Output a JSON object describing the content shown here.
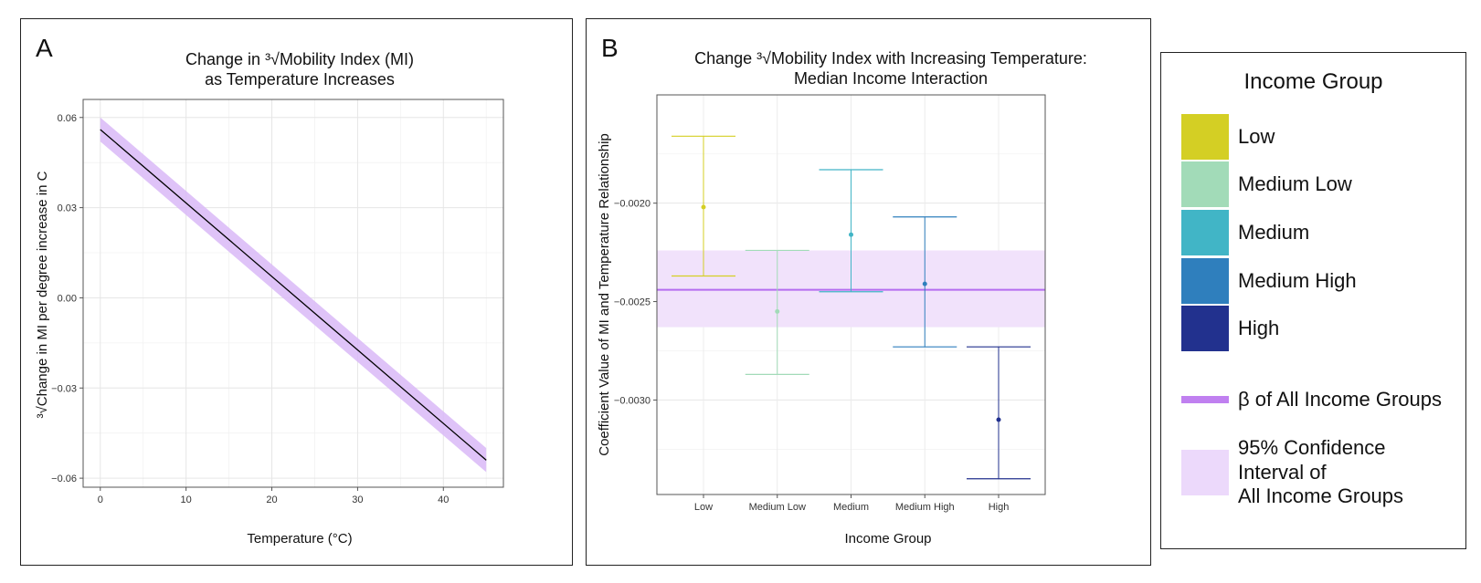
{
  "panel_a": {
    "letter": "A",
    "title_lines": [
      "Change in ³√Mobility Index (MI)",
      "as Temperature Increases"
    ],
    "ylabel": "³√Change in MI per degree increase in C"
  },
  "panel_b": {
    "letter": "B",
    "title_lines": [
      "Change ³√Mobility Index with Increasing Temperature:",
      "Median Income Interaction"
    ]
  },
  "legend": {
    "title": "Income Group",
    "items": [
      {
        "label": "Low",
        "color": "#d4cf24"
      },
      {
        "label": "Medium Low",
        "color": "#a2dbb8"
      },
      {
        "label": "Medium",
        "color": "#41b5c6"
      },
      {
        "label": "Medium High",
        "color": "#2f7fbd"
      },
      {
        "label": "High",
        "color": "#22318e"
      }
    ],
    "beta_label": "β of All Income Groups",
    "beta_color": "#c080f0",
    "ci_label": "95% Confidence\nInterval of\nAll Income Groups",
    "ci_color": "#ecd9fb"
  },
  "chart_data": [
    {
      "type": "line",
      "title": "Change in ³√Mobility Index (MI) as Temperature Increases",
      "xlabel": "Temperature (°C)",
      "ylabel": "³√Change in MI per degree increase in C",
      "xlim": [
        -2,
        47
      ],
      "ylim": [
        -0.063,
        0.066
      ],
      "xticks": [
        0,
        10,
        20,
        30,
        40
      ],
      "yticks": [
        -0.06,
        -0.03,
        0.0,
        0.03,
        0.06
      ],
      "ytick_labels": [
        "−0.06",
        "−0.03",
        "0.00",
        "0.03",
        "0.06"
      ],
      "grid": true,
      "series": [
        {
          "x": [
            0,
            45
          ],
          "y": [
            0.056,
            -0.054
          ],
          "ci_lower": [
            0.052,
            -0.058
          ],
          "ci_upper": [
            0.06,
            -0.05
          ],
          "color": "#000000",
          "band_color": "#d9b8f7"
        }
      ]
    },
    {
      "type": "scatter",
      "title": "Change ³√Mobility Index with Increasing Temperature: Median Income Interaction",
      "xlabel": "Income Group",
      "ylabel": "Coefficient Value of MI and Temperature Relationship",
      "categories": [
        "Low",
        "Medium Low",
        "Medium",
        "Medium High",
        "High"
      ],
      "ylim": [
        -0.00348,
        -0.00145
      ],
      "yticks": [
        -0.003,
        -0.0025,
        -0.002
      ],
      "ytick_labels": [
        "−0.0030",
        "−0.0025",
        "−0.0020"
      ],
      "grid": true,
      "points": [
        {
          "category": "Low",
          "value": -0.00202,
          "lower": -0.00237,
          "upper": -0.00166,
          "color": "#d4cf24"
        },
        {
          "category": "Medium Low",
          "value": -0.00255,
          "lower": -0.00287,
          "upper": -0.00224,
          "color": "#a2dbb8"
        },
        {
          "category": "Medium",
          "value": -0.00216,
          "lower": -0.00245,
          "upper": -0.00183,
          "color": "#41b5c6"
        },
        {
          "category": "Medium High",
          "value": -0.00241,
          "lower": -0.00273,
          "upper": -0.00207,
          "color": "#2f7fbd"
        },
        {
          "category": "High",
          "value": -0.0031,
          "lower": -0.0034,
          "upper": -0.00273,
          "color": "#22318e"
        }
      ],
      "reference_line": {
        "value": -0.00244,
        "color": "#b56cf0"
      },
      "reference_band": {
        "lower": -0.00263,
        "upper": -0.00224,
        "color": "#f1e2fb"
      }
    }
  ]
}
